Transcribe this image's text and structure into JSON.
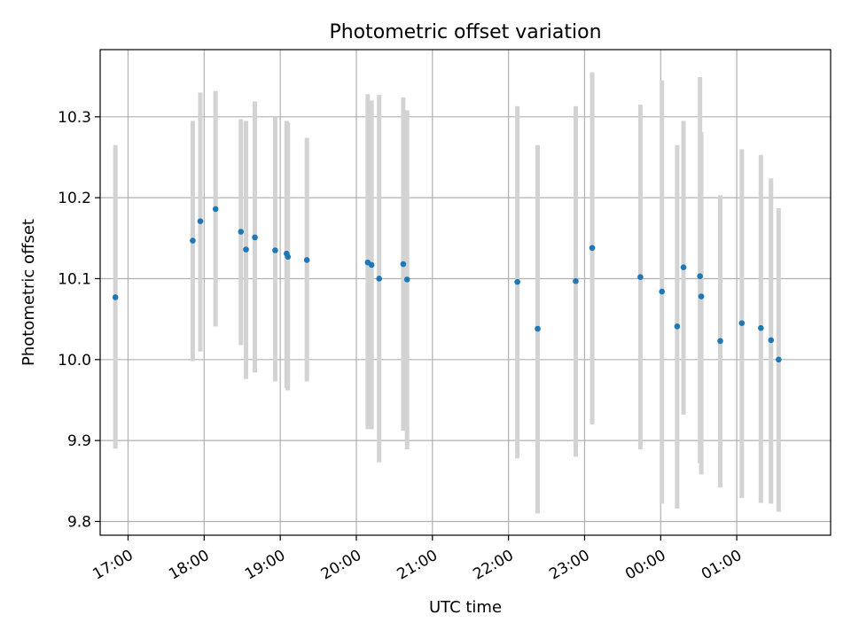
{
  "chart_data": {
    "type": "scatter",
    "title": "Photometric offset variation",
    "xlabel": "UTC time",
    "ylabel": "Photometric offset",
    "x_tick_labels": [
      "17:00",
      "18:00",
      "19:00",
      "20:00",
      "21:00",
      "22:00",
      "23:00",
      "00:00",
      "01:00"
    ],
    "y_ticks": [
      9.8,
      9.9,
      10.0,
      10.1,
      10.2,
      10.3
    ],
    "y_tick_labels": [
      "9.8",
      "9.9",
      "10.0",
      "10.1",
      "10.2",
      "10.3"
    ],
    "xlim": [
      "16:38",
      "02:14"
    ],
    "ylim": [
      9.783,
      10.383
    ],
    "grid": true,
    "colors": {
      "points": "#1f77b4",
      "errorbars": "#d3d3d3"
    },
    "points": [
      {
        "time": "16:50",
        "y": 10.077,
        "ylow": 9.89,
        "yhigh": 10.265
      },
      {
        "time": "17:51",
        "y": 10.147,
        "ylow": 9.998,
        "yhigh": 10.295
      },
      {
        "time": "17:57",
        "y": 10.171,
        "ylow": 10.01,
        "yhigh": 10.33
      },
      {
        "time": "18:09",
        "y": 10.186,
        "ylow": 10.041,
        "yhigh": 10.332
      },
      {
        "time": "18:29",
        "y": 10.158,
        "ylow": 10.018,
        "yhigh": 10.297
      },
      {
        "time": "18:33",
        "y": 10.136,
        "ylow": 9.976,
        "yhigh": 10.295
      },
      {
        "time": "18:40",
        "y": 10.151,
        "ylow": 9.984,
        "yhigh": 10.319
      },
      {
        "time": "18:56",
        "y": 10.135,
        "ylow": 9.973,
        "yhigh": 10.3
      },
      {
        "time": "19:05",
        "y": 10.131,
        "ylow": 9.965,
        "yhigh": 10.295
      },
      {
        "time": "19:06",
        "y": 10.127,
        "ylow": 9.962,
        "yhigh": 10.293
      },
      {
        "time": "19:21",
        "y": 10.123,
        "ylow": 9.973,
        "yhigh": 10.274
      },
      {
        "time": "20:09",
        "y": 10.12,
        "ylow": 9.914,
        "yhigh": 10.328
      },
      {
        "time": "20:12",
        "y": 10.117,
        "ylow": 9.914,
        "yhigh": 10.32
      },
      {
        "time": "20:18",
        "y": 10.1,
        "ylow": 9.873,
        "yhigh": 10.327
      },
      {
        "time": "20:37",
        "y": 10.118,
        "ylow": 9.912,
        "yhigh": 10.324
      },
      {
        "time": "20:40",
        "y": 10.099,
        "ylow": 9.889,
        "yhigh": 10.308
      },
      {
        "time": "22:07",
        "y": 10.096,
        "ylow": 9.878,
        "yhigh": 10.313
      },
      {
        "time": "22:23",
        "y": 10.038,
        "ylow": 9.81,
        "yhigh": 10.265
      },
      {
        "time": "22:53",
        "y": 10.097,
        "ylow": 9.88,
        "yhigh": 10.313
      },
      {
        "time": "23:06",
        "y": 10.138,
        "ylow": 9.92,
        "yhigh": 10.355
      },
      {
        "time": "23:44",
        "y": 10.102,
        "ylow": 9.889,
        "yhigh": 10.315
      },
      {
        "time": "00:01",
        "y": 10.084,
        "ylow": 9.822,
        "yhigh": 10.345
      },
      {
        "time": "00:13",
        "y": 10.041,
        "ylow": 9.816,
        "yhigh": 10.265
      },
      {
        "time": "00:18",
        "y": 10.114,
        "ylow": 9.932,
        "yhigh": 10.295
      },
      {
        "time": "00:31",
        "y": 10.103,
        "ylow": 9.872,
        "yhigh": 10.349
      },
      {
        "time": "00:32",
        "y": 10.078,
        "ylow": 9.858,
        "yhigh": 10.281
      },
      {
        "time": "00:47",
        "y": 10.023,
        "ylow": 9.842,
        "yhigh": 10.203
      },
      {
        "time": "01:04",
        "y": 10.045,
        "ylow": 9.829,
        "yhigh": 10.26
      },
      {
        "time": "01:19",
        "y": 10.039,
        "ylow": 9.823,
        "yhigh": 10.253
      },
      {
        "time": "01:27",
        "y": 10.024,
        "ylow": 9.822,
        "yhigh": 10.224
      },
      {
        "time": "01:33",
        "y": 10.0,
        "ylow": 9.812,
        "yhigh": 10.187
      }
    ]
  }
}
